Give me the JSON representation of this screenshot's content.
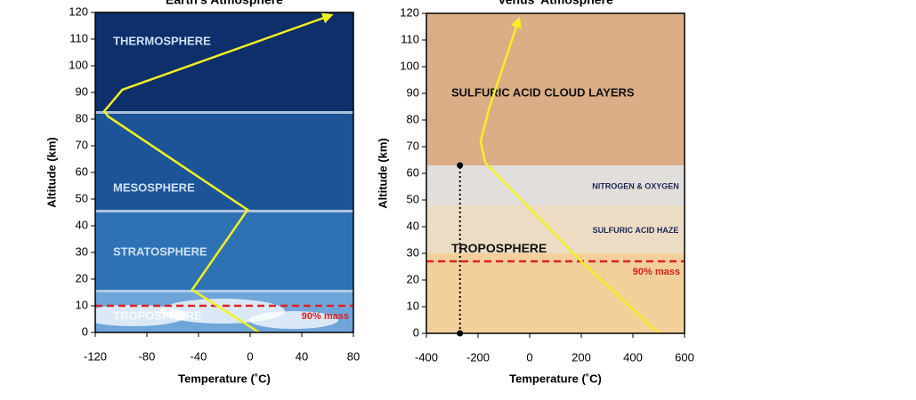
{
  "chart_data": [
    {
      "type": "line",
      "title": "Earth's Atmosphere",
      "xlabel": "Temperature (˚C)",
      "ylabel": "Altitude (km)",
      "x": [
        7,
        -45,
        -2,
        -110,
        -113,
        -99,
        63
      ],
      "values": [
        0,
        16,
        46,
        81,
        83,
        91,
        119
      ],
      "color": "#f4f020",
      "xlim": [
        -120,
        80
      ],
      "xticks": [
        -120,
        -80,
        -40,
        0,
        40,
        80
      ],
      "ylim": [
        0,
        120
      ],
      "yticks": [
        0,
        10,
        20,
        30,
        40,
        50,
        60,
        70,
        80,
        90,
        100,
        110,
        120
      ],
      "layers": [
        {
          "label": "THERMOSPHERE",
          "range": [
            82,
            120
          ],
          "color": "#0d2f6b"
        },
        {
          "label": "MESOSPHERE",
          "range": [
            45,
            82
          ],
          "color": "#1b5597"
        },
        {
          "label": "STRATOSPHERE",
          "range": [
            15,
            45
          ],
          "color": "#2d72b5"
        },
        {
          "label": "TROPOSPHERE",
          "range": [
            0,
            15
          ],
          "color": "#6fa6da"
        }
      ],
      "mass_line": {
        "value": 10,
        "label": "90% mass",
        "color": "#e02020"
      }
    },
    {
      "type": "line",
      "title": "Venus' Atmosphere",
      "xlabel": "Temperature (˚C)",
      "ylabel": "Altitude (km)",
      "x": [
        500,
        200,
        -172,
        -190,
        -155,
        -41
      ],
      "values": [
        0,
        27,
        64,
        72,
        85,
        118
      ],
      "color": "#f4f020",
      "xlim": [
        -400,
        600
      ],
      "xticks": [
        -400,
        -200,
        0,
        200,
        400,
        600
      ],
      "ylim": [
        0,
        120
      ],
      "yticks": [
        0,
        10,
        20,
        30,
        40,
        50,
        60,
        70,
        80,
        90,
        100,
        110,
        120
      ],
      "layers": [
        {
          "label": "SULFURIC ACID CLOUD LAYERS",
          "range": [
            63,
            120
          ],
          "color": "#dcae86"
        },
        {
          "label": "NITROGEN & OXYGEN",
          "range": [
            48,
            63
          ],
          "color": "#e2dedb"
        },
        {
          "label": "SULFURIC ACID HAZE",
          "range": [
            30,
            48
          ],
          "color": "#ecdcc4"
        },
        {
          "label": "TROPOSPHERE",
          "range": [
            0,
            30
          ],
          "color": "#f3cf9a"
        }
      ],
      "mass_line": {
        "value": 27,
        "label": "90% mass",
        "color": "#e02020"
      },
      "marker": {
        "x": -270,
        "y": [
          0,
          63
        ]
      }
    }
  ]
}
